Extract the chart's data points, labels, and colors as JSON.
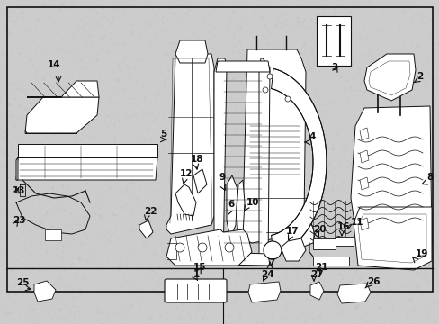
{
  "bg_color": "#cccccc",
  "inner_bg": "#e8e8e8",
  "border_color": "#000000",
  "lc": "#111111",
  "lw": 0.7,
  "figsize": [
    4.89,
    3.6
  ],
  "dpi": 100
}
